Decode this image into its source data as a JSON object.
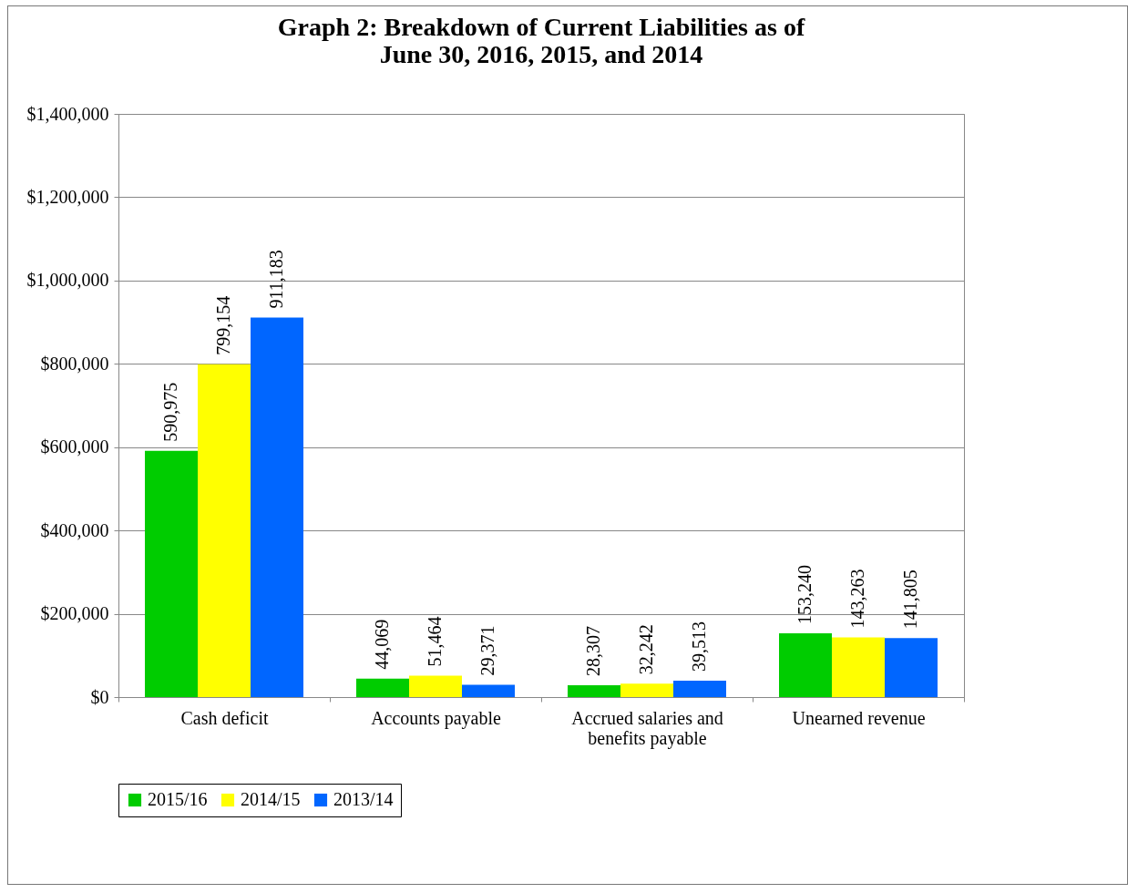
{
  "chart_data": {
    "type": "bar",
    "title": [
      "Graph 2:  Breakdown of Current Liabilities as of",
      "June 30, 2016, 2015, and 2014"
    ],
    "categories": [
      "Cash deficit",
      "Accounts payable",
      "Accrued salaries and benefits payable",
      "Unearned revenue"
    ],
    "series": [
      {
        "name": "2015/16",
        "color": "#00cc00",
        "values": [
          590975,
          44069,
          28307,
          153240
        ],
        "value_labels": [
          "590,975",
          "44,069",
          "28,307",
          "153,240"
        ]
      },
      {
        "name": "2014/15",
        "color": "#ffff00",
        "values": [
          799154,
          51464,
          32242,
          143263
        ],
        "value_labels": [
          "799,154",
          "51,464",
          "32,242",
          "143,263"
        ]
      },
      {
        "name": "2013/14",
        "color": "#0066ff",
        "values": [
          911183,
          29371,
          39513,
          141805
        ],
        "value_labels": [
          "911,183",
          "29,371",
          "39,513",
          "141,805"
        ]
      }
    ],
    "ylim": [
      0,
      1400000
    ],
    "yticks": [
      {
        "value": 0,
        "label": "$0"
      },
      {
        "value": 200000,
        "label": "$200,000"
      },
      {
        "value": 400000,
        "label": "$400,000"
      },
      {
        "value": 600000,
        "label": "$600,000"
      },
      {
        "value": 800000,
        "label": "$800,000"
      },
      {
        "value": 1000000,
        "label": "$1,000,000"
      },
      {
        "value": 1200000,
        "label": "$1,200,000"
      },
      {
        "value": 1400000,
        "label": "$1,400,000"
      }
    ],
    "grid": "y",
    "legend": "bottom"
  }
}
